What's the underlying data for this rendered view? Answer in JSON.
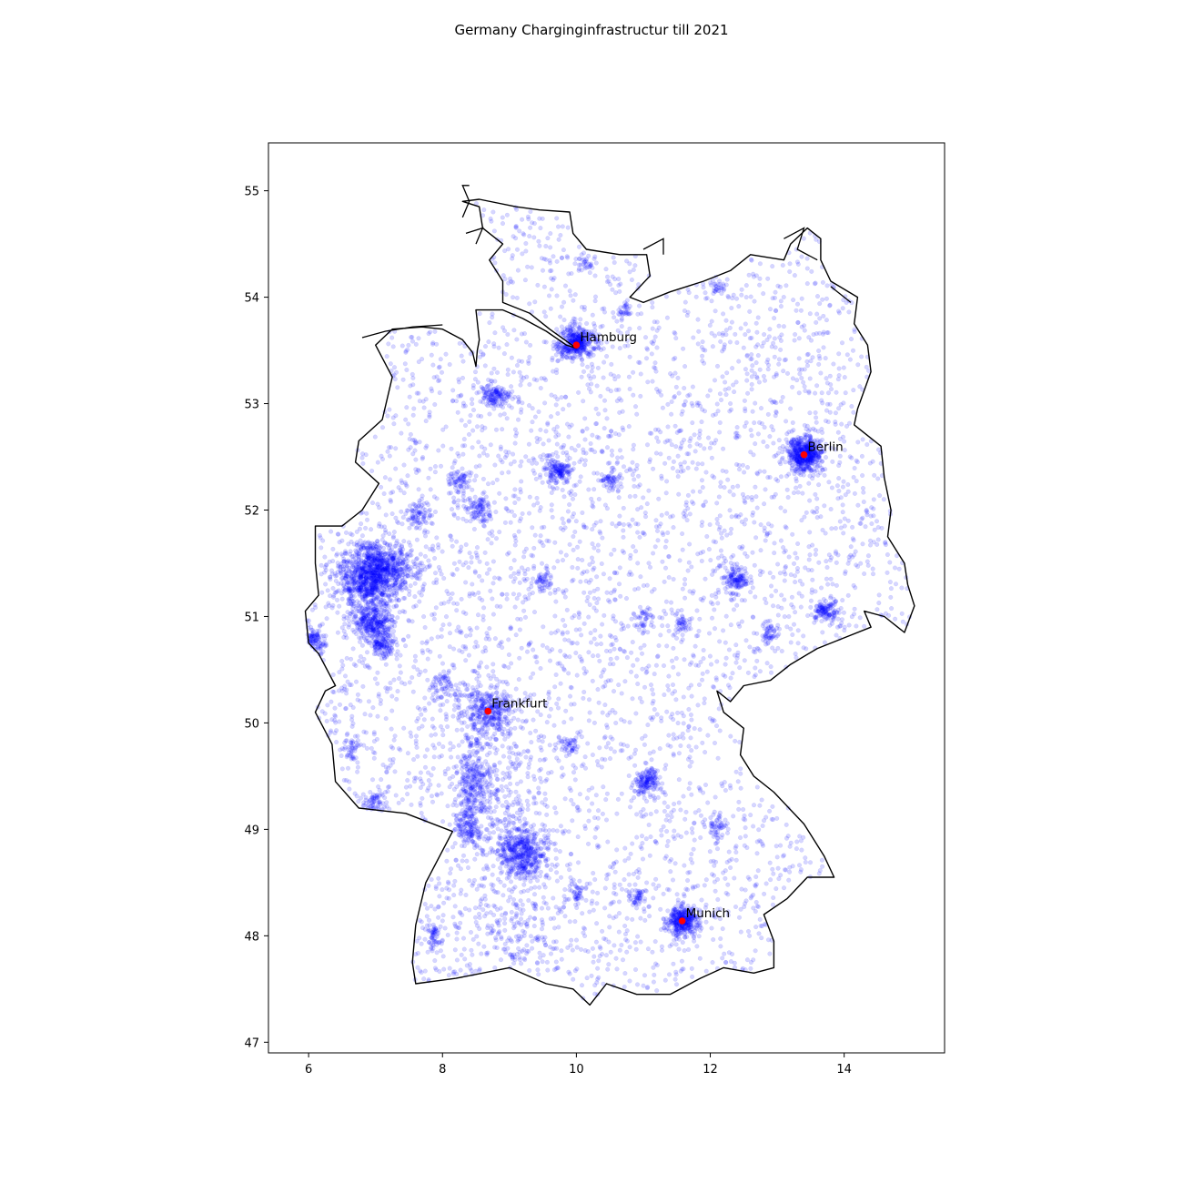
{
  "title": "Germany Charginginfrastructur till 2021",
  "chart_data": {
    "type": "scatter",
    "title": "Germany Charginginfrastructur till 2021",
    "xlabel": "",
    "ylabel": "",
    "xlim": [
      5.4,
      15.5
    ],
    "ylim": [
      46.9,
      55.45
    ],
    "xticks": [
      6,
      8,
      10,
      12,
      14
    ],
    "yticks": [
      47,
      48,
      49,
      50,
      51,
      52,
      53,
      54,
      55
    ],
    "grid": false,
    "legend": "none",
    "colors": {
      "stations": "#0000ff",
      "cities": "#ff0000",
      "border": "#000000"
    },
    "cities": [
      {
        "name": "Hamburg",
        "lon": 10.0,
        "lat": 53.55
      },
      {
        "name": "Berlin",
        "lon": 13.4,
        "lat": 52.52
      },
      {
        "name": "Frankfurt",
        "lon": 8.68,
        "lat": 50.11
      },
      {
        "name": "Munich",
        "lon": 11.58,
        "lat": 48.14
      }
    ],
    "border": [
      [
        7.0,
        53.55
      ],
      [
        7.25,
        53.7
      ],
      [
        7.7,
        53.72
      ],
      [
        8.0,
        53.7
      ],
      [
        8.3,
        53.6
      ],
      [
        8.45,
        53.48
      ],
      [
        8.5,
        53.35
      ],
      [
        8.52,
        53.5
      ],
      [
        8.55,
        53.6
      ],
      [
        8.5,
        53.88
      ],
      [
        8.65,
        53.88
      ],
      [
        8.9,
        53.88
      ],
      [
        9.2,
        53.8
      ],
      [
        9.55,
        53.68
      ],
      [
        9.85,
        53.55
      ],
      [
        10.0,
        53.52
      ],
      [
        9.6,
        53.7
      ],
      [
        9.3,
        53.85
      ],
      [
        8.9,
        53.95
      ],
      [
        8.9,
        54.15
      ],
      [
        8.7,
        54.35
      ],
      [
        8.9,
        54.5
      ],
      [
        8.6,
        54.65
      ],
      [
        8.55,
        54.85
      ],
      [
        8.3,
        54.9
      ],
      [
        8.55,
        54.92
      ],
      [
        9.1,
        54.85
      ],
      [
        9.45,
        54.82
      ],
      [
        9.9,
        54.8
      ],
      [
        9.95,
        54.6
      ],
      [
        10.15,
        54.45
      ],
      [
        10.65,
        54.4
      ],
      [
        11.05,
        54.4
      ],
      [
        11.1,
        54.2
      ],
      [
        10.8,
        54.0
      ],
      [
        11.0,
        53.95
      ],
      [
        11.4,
        54.05
      ],
      [
        11.9,
        54.15
      ],
      [
        12.3,
        54.25
      ],
      [
        12.6,
        54.4
      ],
      [
        13.1,
        54.35
      ],
      [
        13.2,
        54.5
      ],
      [
        13.45,
        54.65
      ],
      [
        13.65,
        54.55
      ],
      [
        13.65,
        54.35
      ],
      [
        13.8,
        54.15
      ],
      [
        14.2,
        54.0
      ],
      [
        14.15,
        53.75
      ],
      [
        14.35,
        53.55
      ],
      [
        14.4,
        53.3
      ],
      [
        14.2,
        52.95
      ],
      [
        14.15,
        52.8
      ],
      [
        14.55,
        52.6
      ],
      [
        14.6,
        52.3
      ],
      [
        14.7,
        52.0
      ],
      [
        14.65,
        51.75
      ],
      [
        14.9,
        51.5
      ],
      [
        14.95,
        51.3
      ],
      [
        15.05,
        51.1
      ],
      [
        14.9,
        50.85
      ],
      [
        14.8,
        50.9
      ],
      [
        14.6,
        51.0
      ],
      [
        14.3,
        51.05
      ],
      [
        14.4,
        50.9
      ],
      [
        14.0,
        50.8
      ],
      [
        13.6,
        50.7
      ],
      [
        13.2,
        50.55
      ],
      [
        12.9,
        50.4
      ],
      [
        12.5,
        50.35
      ],
      [
        12.3,
        50.2
      ],
      [
        12.1,
        50.3
      ],
      [
        12.2,
        50.1
      ],
      [
        12.5,
        49.95
      ],
      [
        12.45,
        49.7
      ],
      [
        12.65,
        49.5
      ],
      [
        12.95,
        49.35
      ],
      [
        13.4,
        49.05
      ],
      [
        13.7,
        48.75
      ],
      [
        13.85,
        48.55
      ],
      [
        13.45,
        48.55
      ],
      [
        13.15,
        48.35
      ],
      [
        12.8,
        48.2
      ],
      [
        12.95,
        47.95
      ],
      [
        12.95,
        47.7
      ],
      [
        12.65,
        47.65
      ],
      [
        12.2,
        47.7
      ],
      [
        11.85,
        47.6
      ],
      [
        11.4,
        47.45
      ],
      [
        10.9,
        47.45
      ],
      [
        10.45,
        47.55
      ],
      [
        10.2,
        47.35
      ],
      [
        9.95,
        47.5
      ],
      [
        9.55,
        47.55
      ],
      [
        9.0,
        47.7
      ],
      [
        8.6,
        47.65
      ],
      [
        8.2,
        47.6
      ],
      [
        7.6,
        47.55
      ],
      [
        7.55,
        47.75
      ],
      [
        7.6,
        48.1
      ],
      [
        7.75,
        48.5
      ],
      [
        8.15,
        48.98
      ],
      [
        7.45,
        49.15
      ],
      [
        6.75,
        49.2
      ],
      [
        6.4,
        49.45
      ],
      [
        6.35,
        49.8
      ],
      [
        6.1,
        50.1
      ],
      [
        6.25,
        50.3
      ],
      [
        6.4,
        50.35
      ],
      [
        6.15,
        50.65
      ],
      [
        6.0,
        50.75
      ],
      [
        5.95,
        51.05
      ],
      [
        6.15,
        51.2
      ],
      [
        6.1,
        51.5
      ],
      [
        6.1,
        51.85
      ],
      [
        6.5,
        51.85
      ],
      [
        6.8,
        52.0
      ],
      [
        7.05,
        52.25
      ],
      [
        6.7,
        52.45
      ],
      [
        6.75,
        52.65
      ],
      [
        7.1,
        52.85
      ],
      [
        7.25,
        53.25
      ],
      [
        7.0,
        53.55
      ]
    ],
    "islands": [
      [
        [
          6.8,
          53.62
        ],
        [
          7.15,
          53.68
        ],
        [
          7.55,
          53.72
        ],
        [
          8.0,
          53.74
        ]
      ],
      [
        [
          8.3,
          54.75
        ],
        [
          8.4,
          54.9
        ],
        [
          8.3,
          55.05
        ],
        [
          8.4,
          55.05
        ]
      ],
      [
        [
          8.35,
          54.6
        ],
        [
          8.6,
          54.65
        ],
        [
          8.5,
          54.5
        ]
      ],
      [
        [
          11.0,
          54.45
        ],
        [
          11.3,
          54.55
        ],
        [
          11.3,
          54.4
        ]
      ],
      [
        [
          13.1,
          54.55
        ],
        [
          13.4,
          54.65
        ],
        [
          13.3,
          54.45
        ],
        [
          13.6,
          54.35
        ]
      ],
      [
        [
          13.8,
          54.1
        ],
        [
          14.1,
          53.95
        ]
      ]
    ],
    "hotspots": [
      {
        "lon": 7.0,
        "lat": 51.45,
        "sx": 0.3,
        "sy": 0.12,
        "n": 900
      },
      {
        "lon": 6.9,
        "lat": 51.25,
        "sx": 0.2,
        "sy": 0.1,
        "n": 300
      },
      {
        "lon": 6.95,
        "lat": 50.93,
        "sx": 0.15,
        "sy": 0.08,
        "n": 300
      },
      {
        "lon": 7.1,
        "lat": 50.73,
        "sx": 0.1,
        "sy": 0.06,
        "n": 120
      },
      {
        "lon": 6.1,
        "lat": 50.78,
        "sx": 0.08,
        "sy": 0.06,
        "n": 80
      },
      {
        "lon": 13.4,
        "lat": 52.52,
        "sx": 0.13,
        "sy": 0.08,
        "n": 500
      },
      {
        "lon": 10.0,
        "lat": 53.57,
        "sx": 0.15,
        "sy": 0.07,
        "n": 400
      },
      {
        "lon": 11.58,
        "lat": 48.14,
        "sx": 0.12,
        "sy": 0.07,
        "n": 350
      },
      {
        "lon": 8.68,
        "lat": 50.11,
        "sx": 0.2,
        "sy": 0.12,
        "n": 350
      },
      {
        "lon": 9.18,
        "lat": 48.78,
        "sx": 0.18,
        "sy": 0.13,
        "n": 450
      },
      {
        "lon": 8.45,
        "lat": 49.45,
        "sx": 0.12,
        "sy": 0.2,
        "n": 250
      },
      {
        "lon": 8.4,
        "lat": 49.0,
        "sx": 0.12,
        "sy": 0.08,
        "n": 120
      },
      {
        "lon": 7.85,
        "lat": 48.0,
        "sx": 0.08,
        "sy": 0.07,
        "n": 60
      },
      {
        "lon": 11.05,
        "lat": 49.45,
        "sx": 0.1,
        "sy": 0.07,
        "n": 150
      },
      {
        "lon": 12.38,
        "lat": 51.34,
        "sx": 0.1,
        "sy": 0.06,
        "n": 130
      },
      {
        "lon": 13.73,
        "lat": 51.05,
        "sx": 0.1,
        "sy": 0.06,
        "n": 120
      },
      {
        "lon": 9.73,
        "lat": 52.37,
        "sx": 0.1,
        "sy": 0.06,
        "n": 150
      },
      {
        "lon": 8.8,
        "lat": 53.08,
        "sx": 0.12,
        "sy": 0.05,
        "n": 130
      },
      {
        "lon": 8.55,
        "lat": 52.02,
        "sx": 0.1,
        "sy": 0.06,
        "n": 90
      },
      {
        "lon": 7.62,
        "lat": 51.96,
        "sx": 0.1,
        "sy": 0.06,
        "n": 70
      },
      {
        "lon": 12.1,
        "lat": 49.02,
        "sx": 0.07,
        "sy": 0.05,
        "n": 50
      },
      {
        "lon": 10.9,
        "lat": 48.37,
        "sx": 0.07,
        "sy": 0.05,
        "n": 50
      },
      {
        "lon": 8.25,
        "lat": 52.28,
        "sx": 0.08,
        "sy": 0.05,
        "n": 60
      },
      {
        "lon": 10.52,
        "lat": 52.27,
        "sx": 0.08,
        "sy": 0.05,
        "n": 60
      },
      {
        "lon": 12.9,
        "lat": 50.83,
        "sx": 0.07,
        "sy": 0.05,
        "n": 50
      },
      {
        "lon": 11.6,
        "lat": 50.93,
        "sx": 0.07,
        "sy": 0.05,
        "n": 40
      },
      {
        "lon": 11.0,
        "lat": 50.98,
        "sx": 0.07,
        "sy": 0.05,
        "n": 40
      },
      {
        "lon": 9.48,
        "lat": 51.31,
        "sx": 0.08,
        "sy": 0.05,
        "n": 50
      },
      {
        "lon": 8.0,
        "lat": 50.35,
        "sx": 0.1,
        "sy": 0.08,
        "n": 60
      },
      {
        "lon": 6.65,
        "lat": 49.75,
        "sx": 0.08,
        "sy": 0.06,
        "n": 40
      },
      {
        "lon": 7.0,
        "lat": 49.25,
        "sx": 0.1,
        "sy": 0.06,
        "n": 60
      },
      {
        "lon": 10.0,
        "lat": 48.4,
        "sx": 0.06,
        "sy": 0.05,
        "n": 40
      },
      {
        "lon": 9.9,
        "lat": 49.8,
        "sx": 0.07,
        "sy": 0.05,
        "n": 40
      },
      {
        "lon": 12.1,
        "lat": 54.09,
        "sx": 0.07,
        "sy": 0.04,
        "n": 30
      },
      {
        "lon": 10.7,
        "lat": 53.87,
        "sx": 0.07,
        "sy": 0.04,
        "n": 30
      },
      {
        "lon": 10.13,
        "lat": 54.32,
        "sx": 0.07,
        "sy": 0.04,
        "n": 30
      },
      {
        "lon": 9.15,
        "lat": 48.0,
        "sx": 0.35,
        "sy": 0.3,
        "n": 150
      },
      {
        "lon": 8.8,
        "lat": 49.3,
        "sx": 0.35,
        "sy": 0.35,
        "n": 200
      }
    ],
    "background_points": 4200
  }
}
